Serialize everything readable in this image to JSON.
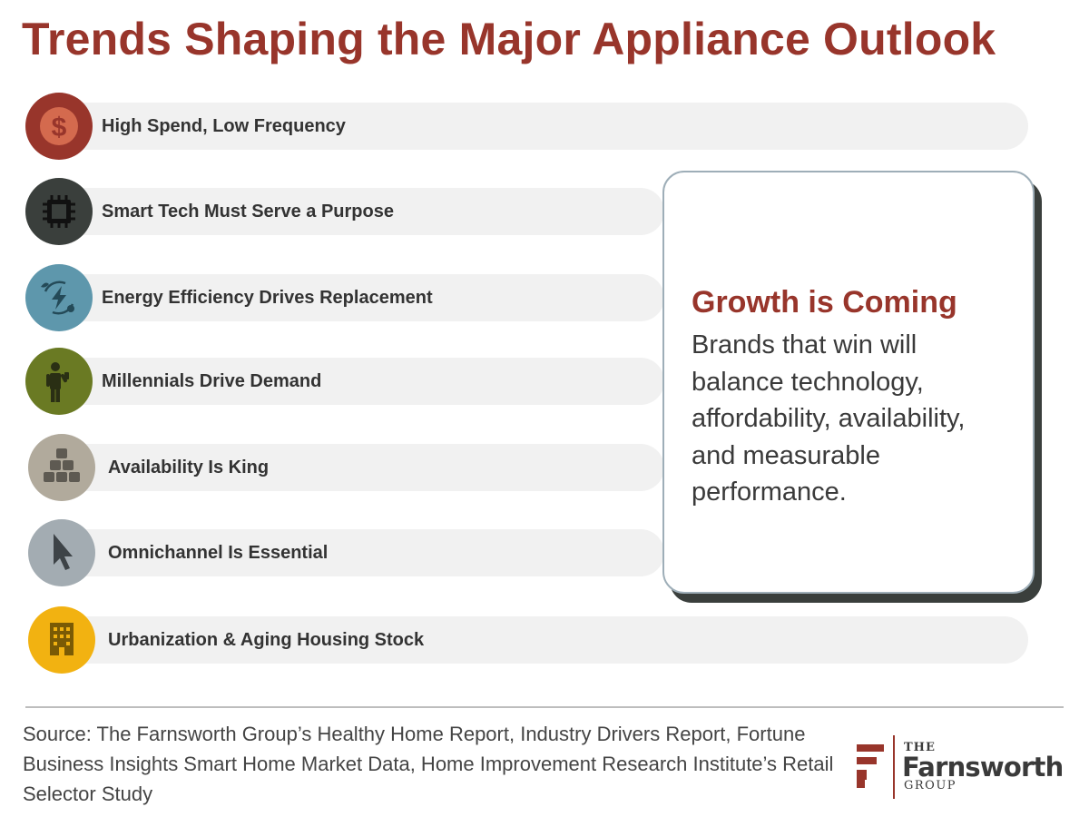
{
  "title": "Trends Shaping the Major Appliance Outlook",
  "colors": {
    "brand": "#98352b",
    "bar": "#f1f1f1",
    "callout_border": "#9eaeb8",
    "callout_shadow": "#3a3f3c"
  },
  "trends": [
    {
      "label": "High Spend, Low Frequency",
      "icon": "dollar-icon",
      "color": "#98352b"
    },
    {
      "label": "Smart Tech Must Serve a Purpose",
      "icon": "chip-icon",
      "color": "#3a3f3c"
    },
    {
      "label": "Energy Efficiency Drives Replacement",
      "icon": "energy-icon",
      "color": "#5e97ac"
    },
    {
      "label": "Millennials Drive Demand",
      "icon": "person-icon",
      "color": "#6a7a23"
    },
    {
      "label": "Availability Is King",
      "icon": "boxes-icon",
      "color": "#b1aa9c"
    },
    {
      "label": "Omnichannel Is Essential",
      "icon": "cursor-icon",
      "color": "#a3acb2"
    },
    {
      "label": "Urbanization & Aging Housing Stock",
      "icon": "building-icon",
      "color": "#f2b211"
    }
  ],
  "callout": {
    "heading": "Growth is Coming",
    "body": "Brands that win will balance technology, affordability, availability, and measurable performance."
  },
  "source": "Source: The Farnsworth Group’s Healthy Home Report, Industry Drivers Report, Fortune Business Insights Smart Home Market Data, Home Improvement Research Institute’s Retail Selector Study",
  "logo": {
    "the": "THE",
    "name": "Farnsworth",
    "group": "GROUP"
  }
}
